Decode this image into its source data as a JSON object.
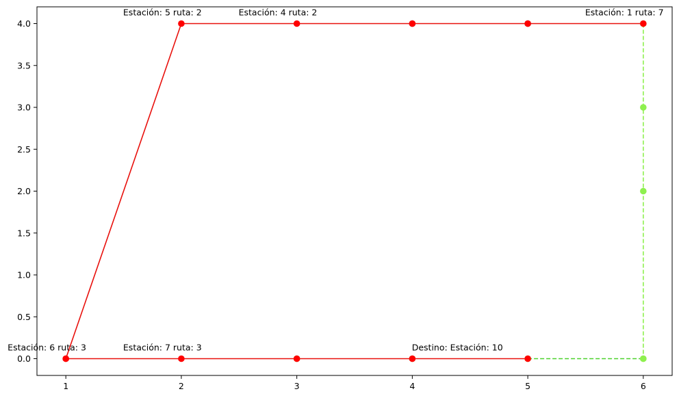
{
  "chart_data": {
    "type": "line",
    "title": "",
    "xlabel": "",
    "ylabel": "",
    "xlim": [
      0.75,
      6.25
    ],
    "ylim": [
      -0.2,
      4.2
    ],
    "x_ticks": [
      1,
      2,
      3,
      4,
      5,
      6
    ],
    "y_ticks": [
      0.0,
      0.5,
      1.0,
      1.5,
      2.0,
      2.5,
      3.0,
      3.5,
      4.0
    ],
    "y_tick_labels": [
      "0.0",
      "0.5",
      "1.0",
      "1.5",
      "2.0",
      "2.5",
      "3.0",
      "3.5",
      "4.0"
    ],
    "grid": false,
    "legend": "none",
    "series": [
      {
        "style": "dashed",
        "color": "#8ef04e",
        "marker_color": "#8ef04e",
        "points": [
          [
            6,
            4
          ],
          [
            6,
            3
          ],
          [
            6,
            2
          ],
          [
            6,
            0
          ]
        ]
      },
      {
        "style": "dashed",
        "color": "#4cd12c",
        "marker_color": "#8ef04e",
        "points": [
          [
            5,
            0
          ],
          [
            6,
            0
          ]
        ]
      },
      {
        "style": "none",
        "color": "#5a3040",
        "marker_color": "#5a3040",
        "points": [
          [
            4,
            4
          ],
          [
            5,
            4
          ]
        ]
      },
      {
        "style": "none",
        "color": "#6fb52c",
        "marker_color": "#6fb52c",
        "points": [
          [
            3,
            0
          ],
          [
            4,
            0
          ]
        ]
      },
      {
        "style": "solid",
        "color": "#e8100c",
        "marker_color": "#ff0000",
        "points": [
          [
            1,
            0
          ],
          [
            2,
            4
          ],
          [
            3,
            4
          ],
          [
            4,
            4
          ],
          [
            5,
            4
          ],
          [
            6,
            4
          ]
        ]
      },
      {
        "style": "solid",
        "color": "#e8100c",
        "marker_color": "#ff0000",
        "points": [
          [
            1,
            0
          ],
          [
            2,
            0
          ],
          [
            3,
            0
          ],
          [
            4,
            0
          ],
          [
            5,
            0
          ]
        ]
      }
    ],
    "annotations": [
      {
        "text": "Estación: 5 ruta: 2",
        "x": 2,
        "y": 4
      },
      {
        "text": "Estación: 4 ruta: 2",
        "x": 3,
        "y": 4
      },
      {
        "text": "Estación: 1 ruta: 7",
        "x": 6,
        "y": 4
      },
      {
        "text": "Estación: 6 ruta: 3",
        "x": 1,
        "y": 0
      },
      {
        "text": "Estación: 7 ruta: 3",
        "x": 2,
        "y": 0
      },
      {
        "text": "Destino: Estación: 10",
        "x": 4.5,
        "y": 0
      }
    ]
  }
}
